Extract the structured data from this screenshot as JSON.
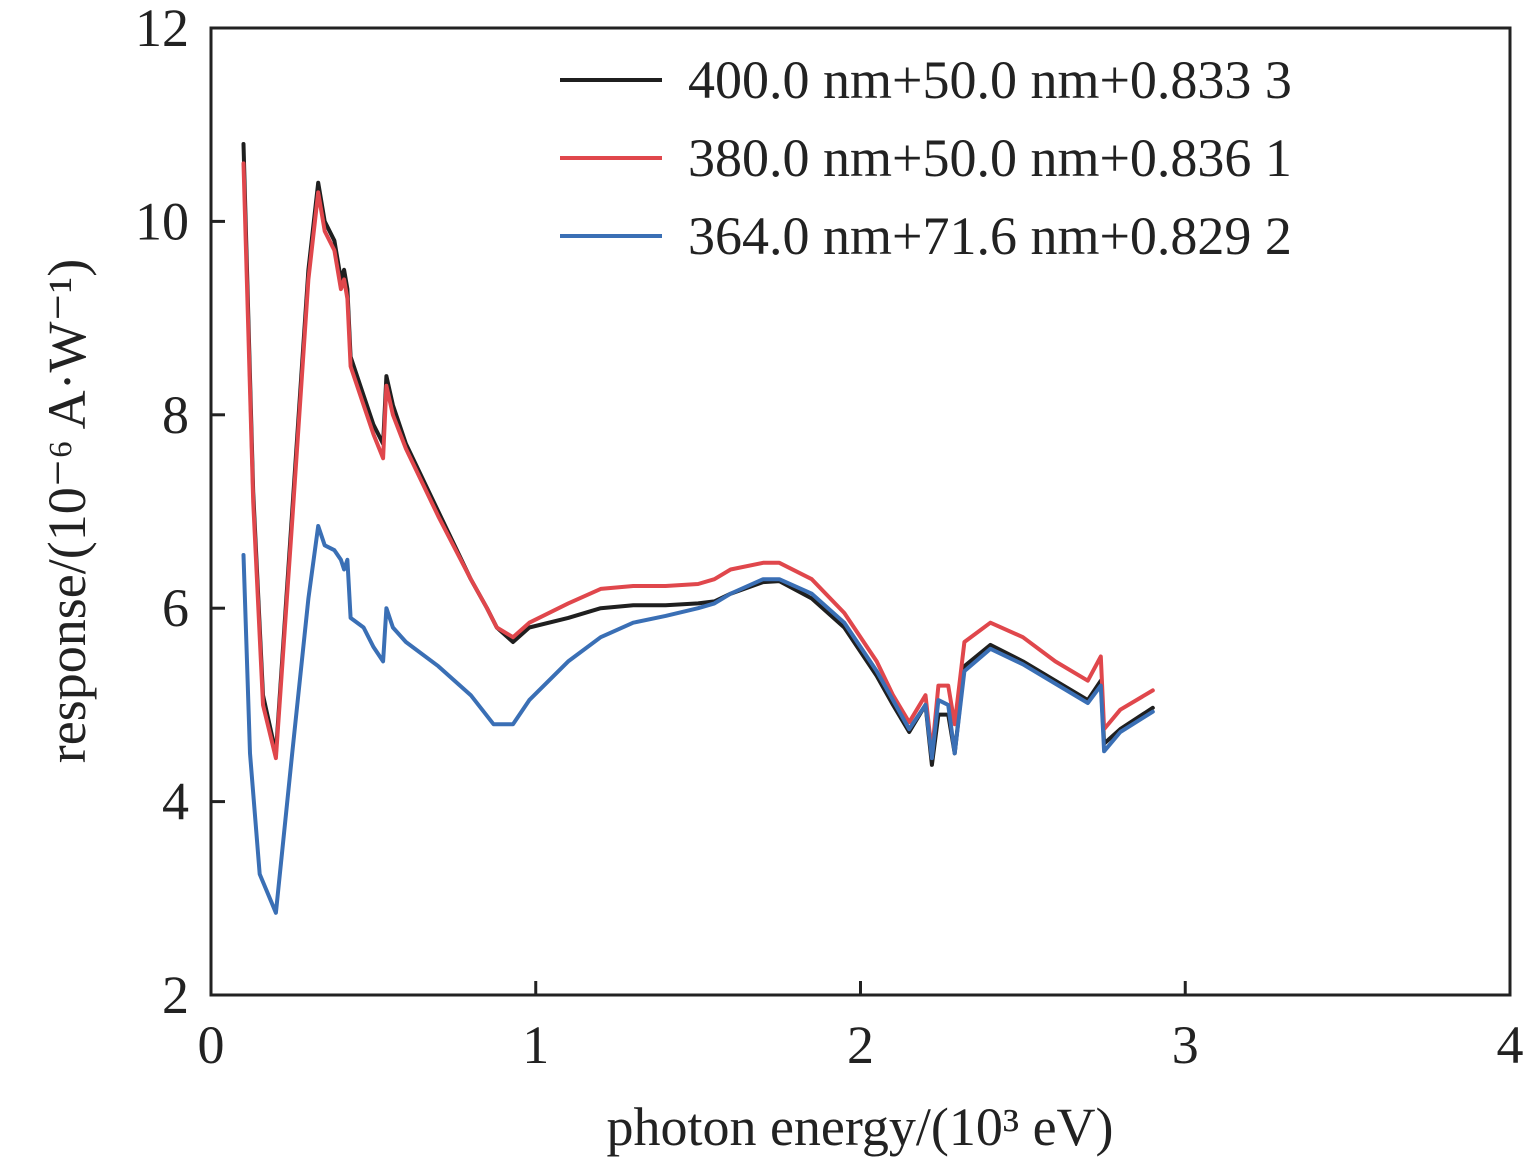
{
  "chart_data": {
    "type": "line",
    "xlabel": "photon energy/(10³ eV)",
    "ylabel": "response/(10⁻⁶ A·W⁻¹)",
    "xlim": [
      0,
      4
    ],
    "ylim": [
      2,
      12
    ],
    "xticks": [
      "0",
      "1",
      "2",
      "3",
      "4"
    ],
    "yticks": [
      "2",
      "4",
      "6",
      "8",
      "10",
      "12"
    ],
    "grid": false,
    "legend_position": "top-right",
    "colors": {
      "black": "#1f1f1f",
      "red": "#e0474c",
      "blue": "#3a6fb5"
    },
    "series": [
      {
        "name": "400.0 nm+50.0 nm+0.833 3",
        "color": "#1f1f1f",
        "points": [
          [
            0.1,
            10.8
          ],
          [
            0.13,
            7.2
          ],
          [
            0.16,
            5.1
          ],
          [
            0.2,
            4.5
          ],
          [
            0.25,
            7.0
          ],
          [
            0.3,
            9.5
          ],
          [
            0.33,
            10.4
          ],
          [
            0.35,
            10.0
          ],
          [
            0.38,
            9.8
          ],
          [
            0.4,
            9.4
          ],
          [
            0.41,
            9.5
          ],
          [
            0.42,
            9.3
          ],
          [
            0.43,
            8.6
          ],
          [
            0.47,
            8.2
          ],
          [
            0.5,
            7.9
          ],
          [
            0.53,
            7.7
          ],
          [
            0.54,
            8.4
          ],
          [
            0.56,
            8.1
          ],
          [
            0.6,
            7.7
          ],
          [
            0.7,
            7.0
          ],
          [
            0.8,
            6.3
          ],
          [
            0.85,
            6.0
          ],
          [
            0.88,
            5.8
          ],
          [
            0.93,
            5.65
          ],
          [
            0.98,
            5.8
          ],
          [
            1.1,
            5.9
          ],
          [
            1.2,
            6.0
          ],
          [
            1.3,
            6.03
          ],
          [
            1.4,
            6.03
          ],
          [
            1.5,
            6.05
          ],
          [
            1.55,
            6.07
          ],
          [
            1.6,
            6.15
          ],
          [
            1.7,
            6.27
          ],
          [
            1.75,
            6.28
          ],
          [
            1.85,
            6.1
          ],
          [
            1.95,
            5.8
          ],
          [
            2.05,
            5.3
          ],
          [
            2.1,
            5.0
          ],
          [
            2.15,
            4.72
          ],
          [
            2.2,
            5.0
          ],
          [
            2.22,
            4.38
          ],
          [
            2.24,
            4.9
          ],
          [
            2.27,
            4.9
          ],
          [
            2.29,
            4.5
          ],
          [
            2.32,
            5.4
          ],
          [
            2.4,
            5.62
          ],
          [
            2.5,
            5.45
          ],
          [
            2.6,
            5.25
          ],
          [
            2.7,
            5.05
          ],
          [
            2.74,
            5.25
          ],
          [
            2.75,
            4.6
          ],
          [
            2.8,
            4.75
          ],
          [
            2.9,
            4.97
          ]
        ]
      },
      {
        "name": "380.0 nm+50.0 nm+0.836 1",
        "color": "#e0474c",
        "points": [
          [
            0.1,
            10.6
          ],
          [
            0.13,
            7.1
          ],
          [
            0.16,
            5.0
          ],
          [
            0.2,
            4.45
          ],
          [
            0.25,
            6.9
          ],
          [
            0.3,
            9.4
          ],
          [
            0.33,
            10.3
          ],
          [
            0.35,
            9.9
          ],
          [
            0.38,
            9.7
          ],
          [
            0.4,
            9.3
          ],
          [
            0.41,
            9.4
          ],
          [
            0.42,
            9.2
          ],
          [
            0.43,
            8.5
          ],
          [
            0.47,
            8.1
          ],
          [
            0.5,
            7.8
          ],
          [
            0.53,
            7.55
          ],
          [
            0.54,
            8.3
          ],
          [
            0.56,
            8.0
          ],
          [
            0.6,
            7.65
          ],
          [
            0.7,
            6.95
          ],
          [
            0.8,
            6.3
          ],
          [
            0.85,
            6.0
          ],
          [
            0.88,
            5.8
          ],
          [
            0.93,
            5.7
          ],
          [
            0.98,
            5.85
          ],
          [
            1.1,
            6.05
          ],
          [
            1.2,
            6.2
          ],
          [
            1.3,
            6.23
          ],
          [
            1.4,
            6.23
          ],
          [
            1.5,
            6.25
          ],
          [
            1.55,
            6.3
          ],
          [
            1.6,
            6.4
          ],
          [
            1.7,
            6.47
          ],
          [
            1.75,
            6.47
          ],
          [
            1.85,
            6.3
          ],
          [
            1.95,
            5.95
          ],
          [
            2.05,
            5.45
          ],
          [
            2.1,
            5.1
          ],
          [
            2.15,
            4.82
          ],
          [
            2.2,
            5.1
          ],
          [
            2.22,
            4.5
          ],
          [
            2.24,
            5.2
          ],
          [
            2.27,
            5.2
          ],
          [
            2.29,
            4.8
          ],
          [
            2.32,
            5.65
          ],
          [
            2.4,
            5.85
          ],
          [
            2.5,
            5.7
          ],
          [
            2.6,
            5.45
          ],
          [
            2.7,
            5.25
          ],
          [
            2.74,
            5.5
          ],
          [
            2.75,
            4.75
          ],
          [
            2.8,
            4.95
          ],
          [
            2.9,
            5.15
          ]
        ]
      },
      {
        "name": "364.0 nm+71.6 nm+0.829 2",
        "color": "#3a6fb5",
        "points": [
          [
            0.1,
            6.55
          ],
          [
            0.12,
            4.5
          ],
          [
            0.15,
            3.25
          ],
          [
            0.2,
            2.85
          ],
          [
            0.25,
            4.5
          ],
          [
            0.3,
            6.1
          ],
          [
            0.33,
            6.85
          ],
          [
            0.35,
            6.65
          ],
          [
            0.38,
            6.6
          ],
          [
            0.4,
            6.5
          ],
          [
            0.41,
            6.4
          ],
          [
            0.42,
            6.5
          ],
          [
            0.43,
            5.9
          ],
          [
            0.47,
            5.8
          ],
          [
            0.5,
            5.6
          ],
          [
            0.53,
            5.45
          ],
          [
            0.54,
            6.0
          ],
          [
            0.56,
            5.8
          ],
          [
            0.6,
            5.65
          ],
          [
            0.7,
            5.4
          ],
          [
            0.8,
            5.1
          ],
          [
            0.87,
            4.8
          ],
          [
            0.93,
            4.8
          ],
          [
            0.98,
            5.05
          ],
          [
            1.1,
            5.45
          ],
          [
            1.2,
            5.7
          ],
          [
            1.3,
            5.85
          ],
          [
            1.4,
            5.92
          ],
          [
            1.5,
            6.0
          ],
          [
            1.55,
            6.05
          ],
          [
            1.6,
            6.15
          ],
          [
            1.7,
            6.3
          ],
          [
            1.75,
            6.3
          ],
          [
            1.85,
            6.15
          ],
          [
            1.95,
            5.85
          ],
          [
            2.05,
            5.35
          ],
          [
            2.1,
            5.05
          ],
          [
            2.15,
            4.75
          ],
          [
            2.2,
            5.0
          ],
          [
            2.22,
            4.45
          ],
          [
            2.24,
            5.05
          ],
          [
            2.27,
            5.0
          ],
          [
            2.29,
            4.5
          ],
          [
            2.32,
            5.35
          ],
          [
            2.4,
            5.58
          ],
          [
            2.5,
            5.42
          ],
          [
            2.6,
            5.22
          ],
          [
            2.7,
            5.02
          ],
          [
            2.74,
            5.2
          ],
          [
            2.75,
            4.52
          ],
          [
            2.8,
            4.72
          ],
          [
            2.9,
            4.93
          ]
        ]
      }
    ]
  }
}
